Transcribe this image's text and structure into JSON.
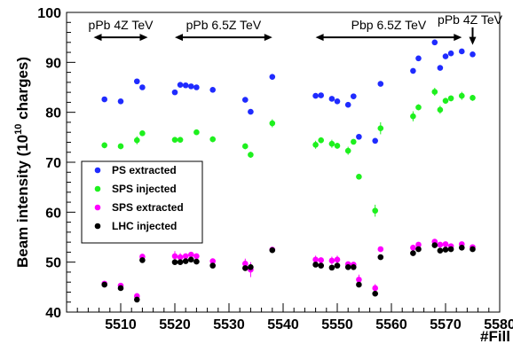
{
  "chart_data": {
    "type": "scatter",
    "xlabel": "#Fill",
    "ylabel": "Beam intensity (10",
    "ylabel_sup": "10",
    "ylabel_tail": " charges)",
    "xlim": [
      5500,
      5580
    ],
    "ylim": [
      40,
      100
    ],
    "x_ticks": [
      5510,
      5520,
      5530,
      5540,
      5550,
      5560,
      5570,
      5580
    ],
    "y_ticks": [
      40,
      50,
      60,
      70,
      80,
      90,
      100
    ],
    "grid": false,
    "legend_position": "bottom-left",
    "annotations": [
      {
        "text": "pPb 4Z TeV",
        "x_start": 5505,
        "x_end": 5515,
        "y": 95
      },
      {
        "text": "pPb 6.5Z TeV",
        "x_start": 5520,
        "x_end": 5538,
        "y": 95
      },
      {
        "text": "Pbp 6.5Z TeV",
        "x_start": 5546,
        "x_end": 5573,
        "y": 95
      },
      {
        "text": "pPb 4Z TeV",
        "x_point": 5575,
        "y_top": 97,
        "y_bottom": 93.5
      }
    ],
    "series": [
      {
        "name": "PS extracted",
        "color": "#1f2bff",
        "x": [
          5507,
          5510,
          5513,
          5514,
          5520,
          5521,
          5522,
          5523,
          5524,
          5527,
          5533,
          5534,
          5538,
          5546,
          5547,
          5549,
          5550,
          5552,
          5553,
          5554,
          5557,
          5558,
          5564,
          5565,
          5568,
          5569,
          5570,
          5571,
          5573,
          5575
        ],
        "y": [
          82.6,
          82.2,
          86.2,
          85,
          84,
          85.5,
          85.4,
          85.2,
          85,
          84.5,
          82.5,
          80.1,
          87.1,
          83.3,
          83.4,
          82.7,
          82.2,
          81.5,
          83.2,
          75.1,
          74.3,
          85.7,
          88.3,
          90.8,
          94,
          88.9,
          91.2,
          91.8,
          92.2,
          91.6
        ],
        "err": [
          0,
          0,
          0,
          0,
          0,
          0.5,
          0,
          0,
          0,
          0,
          0,
          0,
          0,
          0,
          0,
          0,
          0,
          0,
          0,
          0,
          0.5,
          0,
          0,
          0,
          0,
          0,
          0,
          0,
          0,
          0
        ]
      },
      {
        "name": "SPS injected",
        "color": "#1ef01e",
        "x": [
          5507,
          5510,
          5513,
          5514,
          5520,
          5521,
          5524,
          5527,
          5533,
          5534,
          5538,
          5546,
          5547,
          5549,
          5550,
          5552,
          5553,
          5554,
          5557,
          5558,
          5564,
          5565,
          5568,
          5569,
          5570,
          5571,
          5573,
          5575
        ],
        "y": [
          73.4,
          73.2,
          74.4,
          75.8,
          74.5,
          74.5,
          76,
          74.6,
          73.2,
          71.5,
          77.8,
          73.5,
          74.4,
          73.7,
          73.3,
          72.3,
          74.1,
          67.1,
          60.3,
          76.8,
          79.2,
          81,
          84.1,
          80.5,
          82.3,
          82.8,
          83.3,
          82.9
        ],
        "err": [
          0.6,
          0.6,
          0.8,
          0.5,
          0.4,
          0.4,
          0.4,
          0.6,
          0.6,
          0.6,
          0.8,
          0.8,
          0.6,
          0.8,
          0.6,
          0.8,
          0.4,
          0.4,
          1.2,
          1.2,
          1.0,
          0.6,
          0.8,
          0.8,
          0.6,
          0.6,
          0.8,
          0.6
        ]
      },
      {
        "name": "SPS extracted",
        "color": "#ff00ff",
        "x": [
          5507,
          5510,
          5513,
          5514,
          5520,
          5521,
          5522,
          5523,
          5524,
          5527,
          5533,
          5534,
          5538,
          5546,
          5547,
          5549,
          5550,
          5552,
          5553,
          5554,
          5557,
          5558,
          5564,
          5565,
          5568,
          5569,
          5570,
          5571,
          5573,
          5575
        ],
        "y": [
          45.7,
          45.3,
          43.2,
          51.1,
          51.2,
          51,
          51.2,
          51.5,
          51.2,
          50.2,
          49.7,
          48.5,
          52.5,
          50.5,
          50.4,
          50.3,
          50.5,
          49.6,
          49.5,
          46.5,
          44.8,
          52.6,
          52.9,
          53.5,
          54.1,
          53.5,
          53.6,
          53.2,
          53.6,
          53
        ],
        "err": [
          0.3,
          0.5,
          0.6,
          0.4,
          1.0,
          0.8,
          0.5,
          0.4,
          0.4,
          0.4,
          1.0,
          1.5,
          0.3,
          0.8,
          0.5,
          0.8,
          0.8,
          0.4,
          0.4,
          1.0,
          0.8,
          0.5,
          0.4,
          0.4,
          0.4,
          0.4,
          0.4,
          0.4,
          0.4,
          0.4
        ]
      },
      {
        "name": "LHC injected",
        "color": "#000000",
        "x": [
          5507,
          5510,
          5513,
          5514,
          5520,
          5521,
          5522,
          5523,
          5524,
          5527,
          5533,
          5534,
          5538,
          5546,
          5547,
          5549,
          5550,
          5552,
          5553,
          5554,
          5557,
          5558,
          5564,
          5565,
          5568,
          5569,
          5570,
          5571,
          5573,
          5575
        ],
        "y": [
          45.5,
          44.8,
          42.5,
          50.4,
          50,
          50,
          50.2,
          50.5,
          50.1,
          49.3,
          48.8,
          49,
          52.4,
          49.5,
          49.3,
          48.9,
          49.3,
          49,
          49,
          45.5,
          43.7,
          51,
          51.8,
          52.6,
          53.4,
          52.3,
          52.5,
          52.6,
          52.9,
          52.6
        ],
        "err": [
          0,
          0,
          0,
          0,
          0,
          0,
          0,
          0,
          0,
          0,
          0,
          0,
          0,
          0,
          0,
          0,
          0,
          0,
          0,
          0,
          0,
          0,
          0,
          0,
          0,
          0,
          0,
          0,
          0,
          0
        ]
      }
    ]
  }
}
